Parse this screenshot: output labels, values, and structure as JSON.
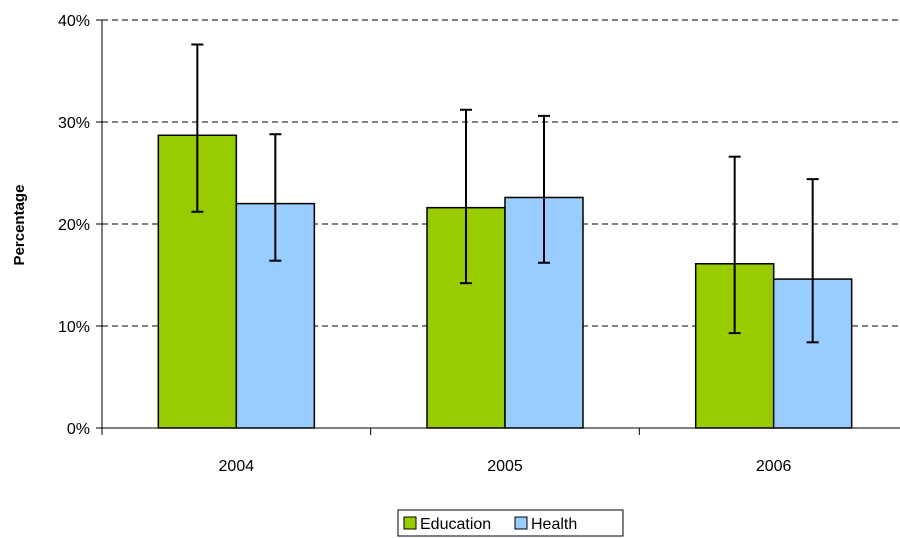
{
  "chart_data": {
    "type": "bar",
    "categories": [
      "2004",
      "2005",
      "2006"
    ],
    "ylabel": "Percentage",
    "xlabel": "",
    "ylim": [
      0,
      40
    ],
    "yticks": [
      0,
      10,
      20,
      30,
      40
    ],
    "ytick_format": "{v}%",
    "grid": "horizontal dashed",
    "legend_position": "bottom-center",
    "series": [
      {
        "name": "Education",
        "color": "#99cc00",
        "values": [
          28.7,
          21.6,
          16.1
        ],
        "error_low": [
          21.2,
          14.2,
          9.3
        ],
        "error_high": [
          37.6,
          31.2,
          26.6
        ]
      },
      {
        "name": "Health",
        "color": "#99ccff",
        "values": [
          22.0,
          22.6,
          14.6
        ],
        "error_low": [
          16.4,
          16.2,
          8.4
        ],
        "error_high": [
          28.8,
          30.6,
          24.4
        ]
      }
    ]
  }
}
